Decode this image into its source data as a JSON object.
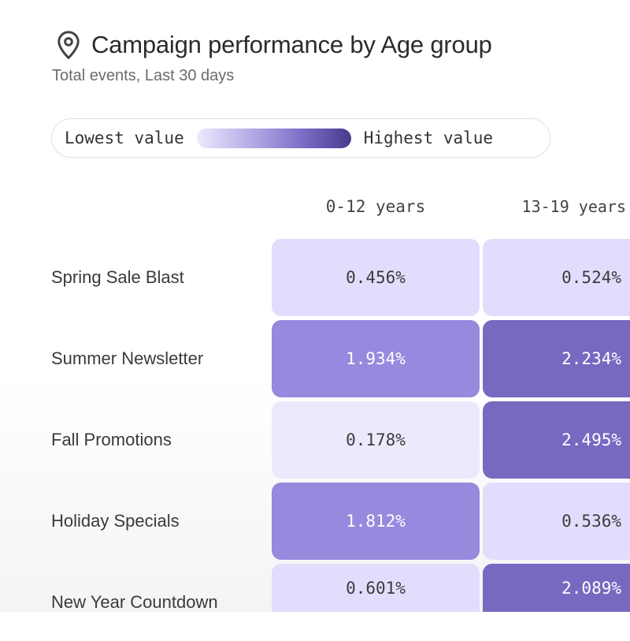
{
  "header": {
    "icon": "map-pin-icon",
    "title": "Campaign performance by Age group",
    "subtitle": "Total events, Last 30 days"
  },
  "legend": {
    "low_label": "Lowest value",
    "high_label": "Highest value",
    "colors": [
      "#ece9fd",
      "#4a3a8c"
    ]
  },
  "chart_data": {
    "type": "heatmap",
    "title": "Campaign performance by Age group",
    "subtitle": "Total events, Last 30 days",
    "columns": [
      "0-12 years",
      "13-19 years"
    ],
    "rows": [
      "Spring Sale Blast",
      "Summer Newsletter",
      "Fall Promotions",
      "Holiday Specials",
      "New Year Countdown"
    ],
    "values": [
      [
        0.456,
        0.524
      ],
      [
        1.934,
        2.234
      ],
      [
        0.178,
        2.495
      ],
      [
        1.812,
        0.536
      ],
      [
        0.601,
        2.089
      ]
    ],
    "labels": [
      [
        "0.456%",
        "0.524%"
      ],
      [
        "1.934%",
        "2.234%"
      ],
      [
        "0.178%",
        "2.495%"
      ],
      [
        "1.812%",
        "0.536%"
      ],
      [
        "0.601%",
        "2.089%"
      ]
    ],
    "unit": "%",
    "color_scale": {
      "lightest": "#ede9fc",
      "light": "#e2ddfd",
      "medium": "#9689de",
      "dark": "#7868c0"
    }
  }
}
